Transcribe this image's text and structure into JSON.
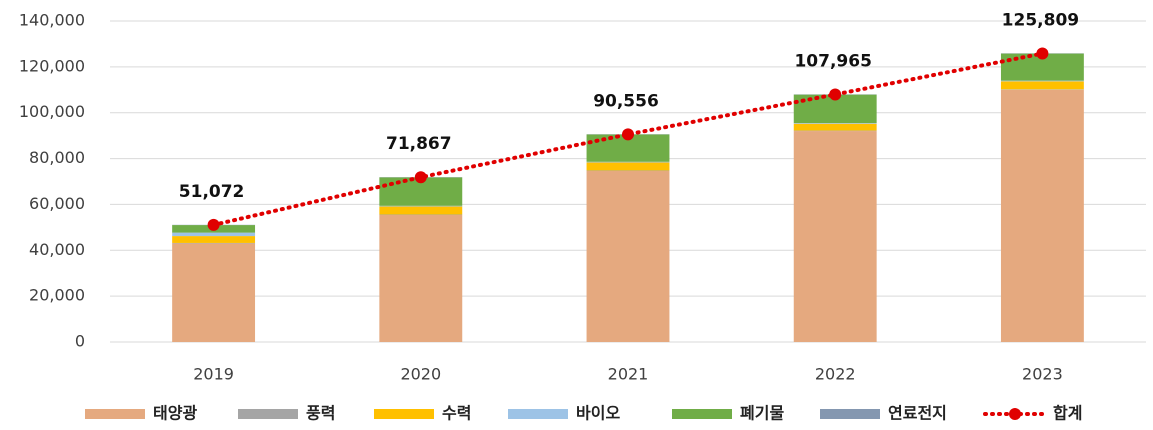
{
  "chart_data": {
    "type": "bar",
    "stacked": true,
    "categories": [
      "2019",
      "2020",
      "2021",
      "2022",
      "2023"
    ],
    "series": [
      {
        "name": "태양광",
        "color": "#e5a97f",
        "values": [
          43000,
          55400,
          74600,
          92000,
          110000
        ]
      },
      {
        "name": "풍력",
        "color": "#a5a5a5",
        "values": [
          200,
          200,
          200,
          200,
          200
        ]
      },
      {
        "name": "수력",
        "color": "#ffc000",
        "values": [
          3000,
          3500,
          3500,
          3000,
          3500
        ]
      },
      {
        "name": "바이오",
        "color": "#9dc3e6",
        "values": [
          1500,
          300,
          300,
          300,
          300
        ]
      },
      {
        "name": "폐기물",
        "color": "#70ad47",
        "values": [
          3300,
          12400,
          11900,
          12400,
          11800
        ]
      },
      {
        "name": "연료전지",
        "color": "#8497b0",
        "values": [
          100,
          100,
          100,
          100,
          100
        ]
      },
      {
        "name": "합계",
        "type": "line",
        "line_style": "dotted",
        "color": "#e00000",
        "values": [
          51072,
          71867,
          90556,
          107965,
          125809
        ],
        "value_labels": [
          "51,072",
          "71,867",
          "90,556",
          "107,965",
          "125,809"
        ]
      }
    ],
    "ylim": [
      0,
      140000
    ],
    "yticks": [
      0,
      {
        "value": 20000,
        "label": "20,000"
      },
      {
        "value": 40000,
        "label": "40,000"
      },
      {
        "value": 60000,
        "label": "60,000"
      },
      {
        "value": 80000,
        "label": "80,000"
      },
      {
        "value": 100000,
        "label": "100,000"
      },
      {
        "value": 120000,
        "label": "120,000"
      },
      {
        "value": 140000,
        "label": "140,000"
      }
    ],
    "grid": true,
    "legend": "bottom"
  }
}
